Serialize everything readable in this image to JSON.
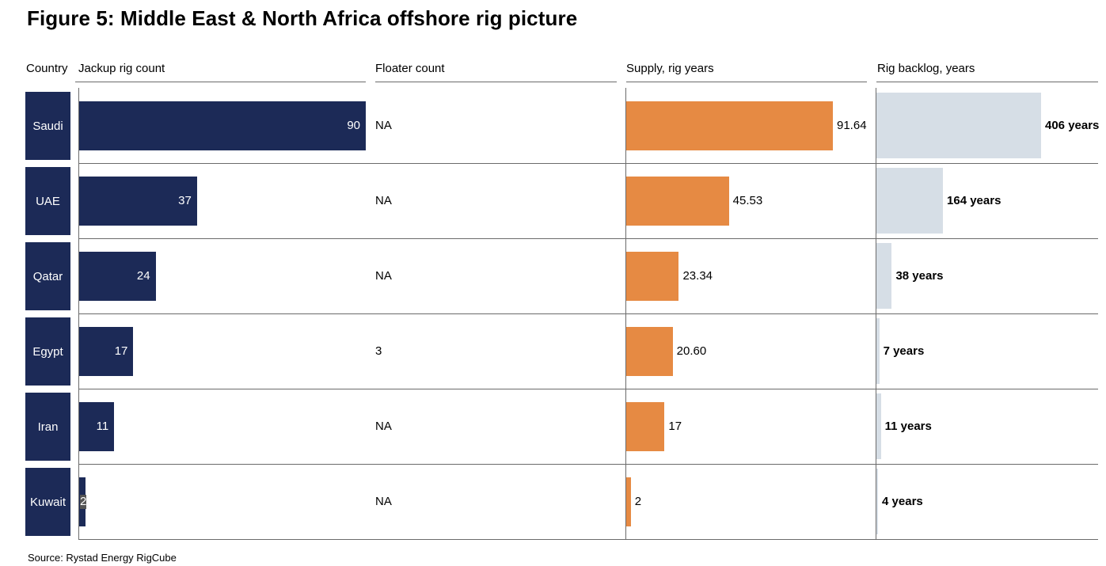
{
  "title": "Figure 5: Middle East & North Africa offshore rig picture",
  "headers": {
    "country": "Country",
    "jackup": "Jackup rig count",
    "floater": "Floater count",
    "supply": "Supply, rig years",
    "backlog": "Rig backlog, years"
  },
  "source": "Source: Rystad Energy RigCube",
  "colors": {
    "jackup": "#1c2a57",
    "supply": "#e68a43",
    "backlog": "#d6dee6",
    "text_on_dark": "#ffffff"
  },
  "chart_data": {
    "type": "bar",
    "categories": [
      "Saudi",
      "UAE",
      "Qatar",
      "Egypt",
      "Iran",
      "Kuwait"
    ],
    "series": [
      {
        "name": "Jackup rig count",
        "values": [
          90,
          37,
          24,
          17,
          11,
          2
        ],
        "labels": [
          "90",
          "37",
          "24",
          "17",
          "11",
          "2"
        ]
      },
      {
        "name": "Floater count",
        "values": [
          null,
          null,
          null,
          3,
          null,
          null
        ],
        "labels": [
          "NA",
          "NA",
          "NA",
          "3",
          "NA",
          "NA"
        ]
      },
      {
        "name": "Supply, rig years",
        "values": [
          91.64,
          45.53,
          23.34,
          20.6,
          17,
          2
        ],
        "labels": [
          "91.64",
          "45.53",
          "23.34",
          "20.60",
          "17",
          "2"
        ]
      },
      {
        "name": "Rig backlog, years",
        "values": [
          406,
          164,
          38,
          7,
          11,
          4
        ],
        "labels": [
          "406 years",
          "164 years",
          "38 years",
          "7 years",
          "11 years",
          "4 years"
        ]
      }
    ]
  }
}
